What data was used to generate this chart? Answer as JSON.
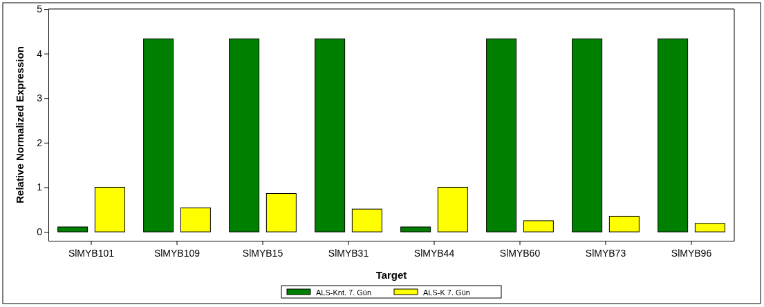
{
  "chart_data": {
    "type": "bar",
    "xlabel": "Target",
    "ylabel": "Relative Normalized Expression",
    "categories": [
      "SlMYB101",
      "SlMYB109",
      "SlMYB15",
      "SlMYB31",
      "SlMYB44",
      "SlMYB60",
      "SlMYB73",
      "SlMYB96"
    ],
    "series": [
      {
        "name": "ALS-Knt. 7. Gün",
        "color": "#008000",
        "values": [
          0.11,
          4.33,
          4.33,
          4.33,
          0.11,
          4.33,
          4.33,
          4.33
        ]
      },
      {
        "name": "ALS-K 7. Gün",
        "color": "#ffff00",
        "values": [
          1.0,
          0.54,
          0.86,
          0.51,
          1.0,
          0.25,
          0.35,
          0.19
        ]
      }
    ],
    "ylim": [
      -0.2,
      5
    ],
    "yticks": [
      0,
      1,
      2,
      3,
      4,
      5
    ],
    "grid": false,
    "legend": "bottom"
  }
}
